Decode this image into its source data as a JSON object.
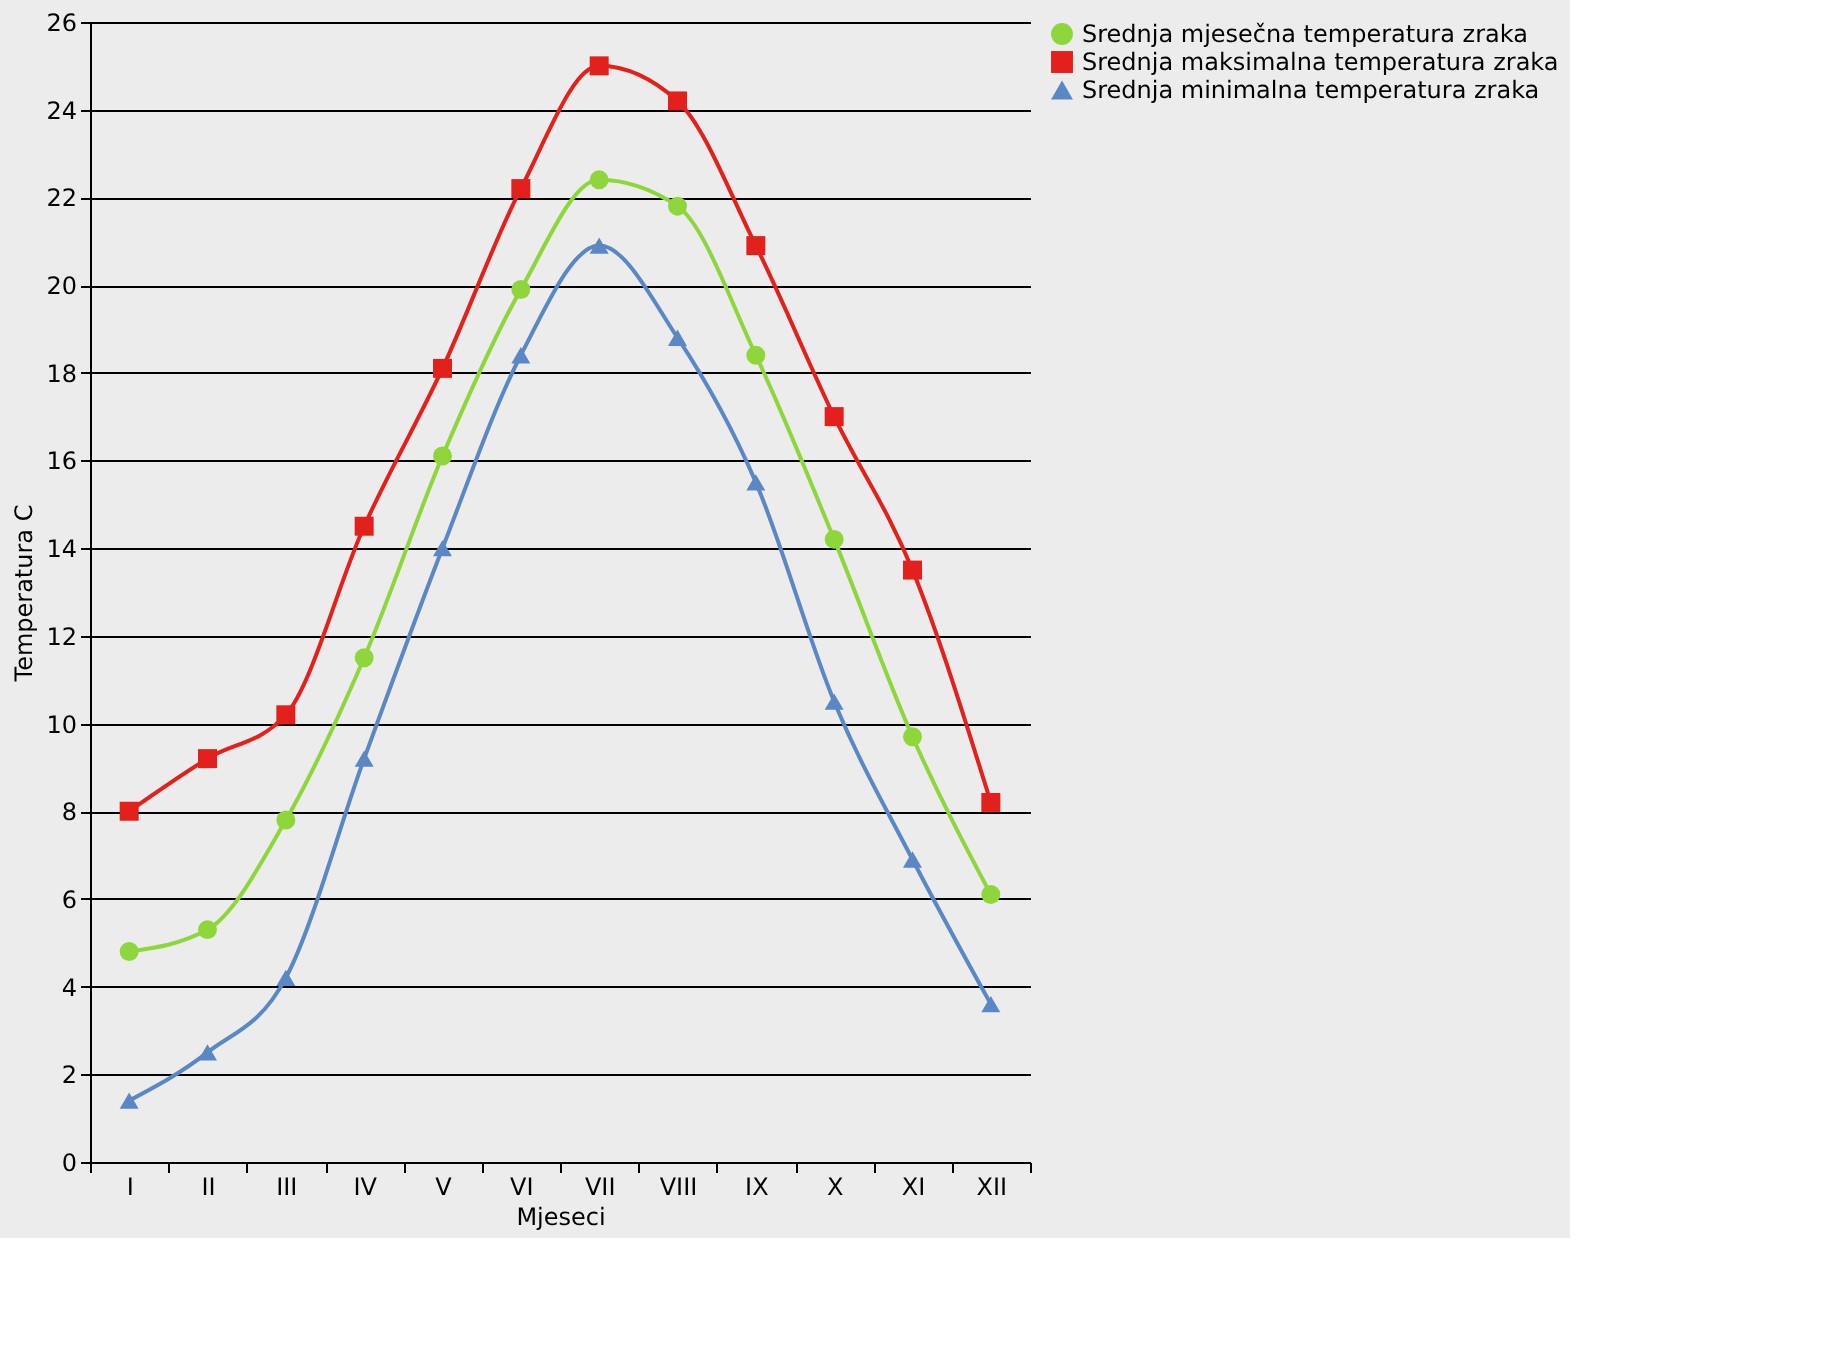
{
  "chart_data": {
    "type": "line",
    "xlabel": "Mjeseci",
    "ylabel": "Temperatura C",
    "categories": [
      "I",
      "II",
      "III",
      "IV",
      "V",
      "VI",
      "VII",
      "VIII",
      "IX",
      "X",
      "XI",
      "XII"
    ],
    "series": [
      {
        "name": "Srednja mjesečna temperatura zraka",
        "color": "#8ed63c",
        "marker": "circle",
        "values": [
          4.8,
          5.3,
          7.8,
          11.5,
          16.1,
          19.9,
          22.4,
          21.8,
          18.4,
          14.2,
          9.7,
          6.1
        ]
      },
      {
        "name": "Srednja maksimalna temperatura zraka",
        "color": "#e3201b",
        "marker": "square",
        "values": [
          8.0,
          9.2,
          10.2,
          14.5,
          18.1,
          22.2,
          25.0,
          24.2,
          20.9,
          17.0,
          13.5,
          8.2
        ]
      },
      {
        "name": "Srednja minimalna temperatura zraka",
        "color": "#5b87c5",
        "marker": "triangle",
        "values": [
          1.4,
          2.5,
          4.2,
          9.2,
          14.0,
          18.4,
          20.9,
          18.8,
          15.5,
          10.5,
          6.9,
          3.6
        ]
      }
    ],
    "ylim": [
      0,
      26
    ],
    "yticks": [
      0,
      2,
      4,
      6,
      8,
      10,
      12,
      14,
      16,
      18,
      20,
      22,
      24,
      26
    ],
    "grid": "y",
    "legend": "top right",
    "line_style": "solid"
  }
}
